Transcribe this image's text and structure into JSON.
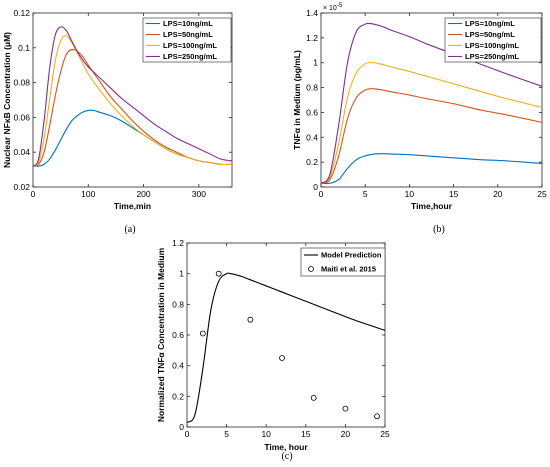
{
  "chart_data": [
    {
      "type": "line",
      "caption": "(a)",
      "xlabel": "Time,min",
      "ylabel": "Nuclear NFκB Concentration (μM)",
      "xlim": [
        0,
        360
      ],
      "ylim": [
        0.02,
        0.12
      ],
      "xticks": [
        "0",
        "100",
        "200",
        "300"
      ],
      "yticks": [
        "0.02",
        "0.04",
        "0.06",
        "0.08",
        "0.1",
        "0.12"
      ],
      "legend_position": "top-right",
      "series": [
        {
          "name": "LPS=10ng/mL",
          "color": "#0072bd",
          "x": [
            0,
            10,
            20,
            30,
            40,
            50,
            60,
            70,
            80,
            90,
            100,
            110,
            120,
            140,
            160,
            180,
            200,
            220,
            240,
            260,
            280,
            300,
            320,
            340,
            360
          ],
          "y": [
            0.032,
            0.032,
            0.033,
            0.036,
            0.041,
            0.047,
            0.053,
            0.058,
            0.061,
            0.063,
            0.064,
            0.064,
            0.063,
            0.061,
            0.058,
            0.054,
            0.05,
            0.046,
            0.042,
            0.039,
            0.037,
            0.035,
            0.034,
            0.033,
            0.033
          ]
        },
        {
          "name": "LPS=50ng/mL",
          "color": "#d95319",
          "x": [
            0,
            10,
            20,
            30,
            40,
            50,
            60,
            70,
            80,
            90,
            100,
            120,
            140,
            160,
            180,
            200,
            220,
            240,
            260,
            280,
            300,
            320,
            340,
            360
          ],
          "y": [
            0.032,
            0.033,
            0.04,
            0.055,
            0.072,
            0.086,
            0.096,
            0.099,
            0.098,
            0.095,
            0.09,
            0.081,
            0.072,
            0.065,
            0.058,
            0.052,
            0.047,
            0.043,
            0.04,
            0.037,
            0.035,
            0.034,
            0.033,
            0.033
          ]
        },
        {
          "name": "LPS=100ng/mL",
          "color": "#edb120",
          "x": [
            0,
            10,
            20,
            30,
            40,
            50,
            60,
            70,
            80,
            90,
            100,
            120,
            140,
            160,
            180,
            200,
            220,
            240,
            260,
            280,
            300,
            320,
            340,
            360
          ],
          "y": [
            0.032,
            0.034,
            0.048,
            0.07,
            0.092,
            0.104,
            0.107,
            0.103,
            0.097,
            0.091,
            0.085,
            0.076,
            0.068,
            0.061,
            0.055,
            0.05,
            0.046,
            0.042,
            0.039,
            0.037,
            0.035,
            0.034,
            0.033,
            0.033
          ]
        },
        {
          "name": "LPS=250ng/mL",
          "color": "#7e2f8e",
          "x": [
            0,
            10,
            20,
            30,
            40,
            50,
            60,
            70,
            80,
            90,
            100,
            120,
            140,
            160,
            180,
            200,
            220,
            240,
            260,
            280,
            300,
            320,
            340,
            360
          ],
          "y": [
            0.032,
            0.036,
            0.058,
            0.088,
            0.107,
            0.112,
            0.11,
            0.104,
            0.098,
            0.093,
            0.089,
            0.083,
            0.077,
            0.071,
            0.066,
            0.061,
            0.056,
            0.052,
            0.048,
            0.045,
            0.042,
            0.039,
            0.036,
            0.035
          ]
        }
      ]
    },
    {
      "type": "line",
      "caption": "(b)",
      "xlabel": "Time,hour",
      "ylabel": "TNFα in Medium (pg/mL)",
      "y_multiplier": "× 10",
      "y_multiplier_exponent": "-5",
      "xlim": [
        0,
        25
      ],
      "ylim": [
        0,
        1.4
      ],
      "xticks": [
        "0",
        "5",
        "10",
        "15",
        "20",
        "25"
      ],
      "yticks": [
        "0",
        "0.2",
        "0.4",
        "0.6",
        "0.8",
        "1",
        "1.2",
        "1.4"
      ],
      "legend_position": "top-right",
      "series": [
        {
          "name": "LPS=10ng/mL",
          "color": "#0072bd",
          "x": [
            0,
            1,
            2,
            3,
            4,
            5,
            6,
            7,
            8,
            10,
            12,
            15,
            18,
            21,
            25
          ],
          "y": [
            0.03,
            0.03,
            0.06,
            0.15,
            0.22,
            0.25,
            0.265,
            0.268,
            0.265,
            0.26,
            0.25,
            0.235,
            0.22,
            0.21,
            0.19
          ]
        },
        {
          "name": "LPS=50ng/mL",
          "color": "#d95319",
          "x": [
            0,
            1,
            2,
            3,
            4,
            5,
            5.5,
            6,
            7,
            8,
            10,
            12,
            15,
            18,
            21,
            25
          ],
          "y": [
            0.03,
            0.06,
            0.25,
            0.55,
            0.72,
            0.78,
            0.79,
            0.79,
            0.78,
            0.765,
            0.74,
            0.71,
            0.67,
            0.62,
            0.58,
            0.52
          ]
        },
        {
          "name": "LPS=100ng/mL",
          "color": "#edb120",
          "x": [
            0,
            1,
            2,
            3,
            4,
            5,
            5.5,
            6,
            7,
            8,
            10,
            12,
            15,
            18,
            21,
            25
          ],
          "y": [
            0.03,
            0.08,
            0.35,
            0.72,
            0.92,
            0.99,
            1.0,
            1.0,
            0.985,
            0.965,
            0.93,
            0.89,
            0.83,
            0.77,
            0.71,
            0.64
          ]
        },
        {
          "name": "LPS=250ng/mL",
          "color": "#7e2f8e",
          "x": [
            0,
            1,
            2,
            3,
            4,
            5,
            5.5,
            6,
            7,
            8,
            10,
            12,
            15,
            18,
            21,
            25
          ],
          "y": [
            0.03,
            0.1,
            0.5,
            1.0,
            1.25,
            1.31,
            1.315,
            1.31,
            1.29,
            1.26,
            1.21,
            1.15,
            1.07,
            0.99,
            0.91,
            0.81
          ]
        }
      ]
    },
    {
      "type": "line",
      "caption": "(c)",
      "xlabel": "Time, hour",
      "ylabel": "Normalized TNFα Concentration in Medium",
      "xlim": [
        0,
        25
      ],
      "ylim": [
        0,
        1.2
      ],
      "xticks": [
        "0",
        "5",
        "10",
        "15",
        "20",
        "25"
      ],
      "yticks": [
        "0",
        "0.2",
        "0.4",
        "0.6",
        "0.8",
        "1",
        "1.2"
      ],
      "legend_position": "top-right",
      "series": [
        {
          "name": "Model Prediction",
          "color": "#000000",
          "style": "line",
          "x": [
            0,
            1,
            2,
            3,
            4,
            5,
            5.5,
            6,
            7,
            8,
            10,
            12,
            15,
            18,
            21,
            25
          ],
          "y": [
            0.03,
            0.08,
            0.38,
            0.76,
            0.95,
            1.0,
            1.0,
            0.995,
            0.98,
            0.96,
            0.92,
            0.88,
            0.82,
            0.76,
            0.7,
            0.63
          ]
        },
        {
          "name": "Maiti et al. 2015",
          "color": "#000000",
          "style": "marker",
          "x": [
            2,
            4,
            8,
            12,
            16,
            20,
            24
          ],
          "y": [
            0.61,
            1.0,
            0.7,
            0.45,
            0.19,
            0.12,
            0.07
          ]
        }
      ]
    }
  ]
}
